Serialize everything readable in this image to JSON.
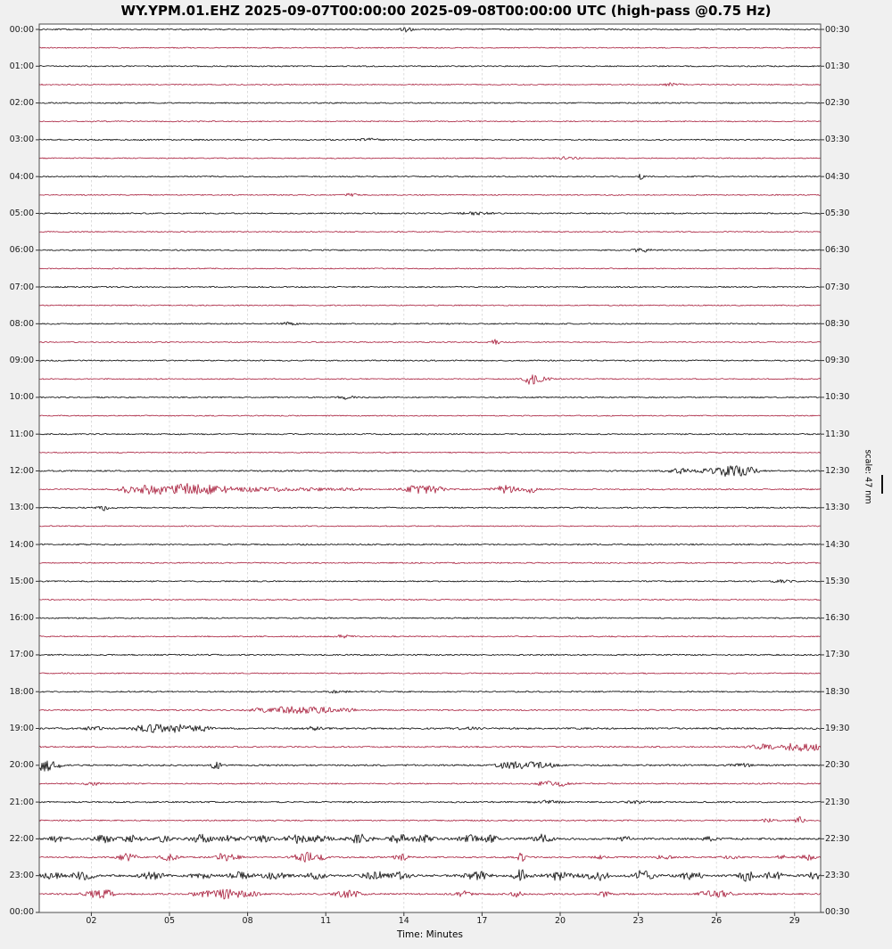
{
  "colors": {
    "trace_black": "#1f1f1f",
    "trace_red": "#a81e3c",
    "grid": "#d4d4d4",
    "frame": "#4d4d4d",
    "tick": "#333333",
    "background": "#f0f0f0",
    "plot_bg": "#ffffff"
  },
  "chart_data": {
    "type": "line",
    "subtype": "helicorder-dayplot",
    "title": "WY.YPM.01.EHZ 2025-09-07T00:00:00 2025-09-08T00:00:00 UTC (high-pass @0.75 Hz)",
    "station": "WY.YPM.01.EHZ",
    "time_start": "2025-09-07T00:00:00 UTC",
    "time_end": "2025-09-08T00:00:00 UTC",
    "filter": "high-pass @0.75 Hz",
    "xlabel": "Time: Minutes",
    "scale_label": "scale: 47 nm",
    "x_range_minutes": [
      0,
      30
    ],
    "minutes_per_line": 30,
    "x_ticks": [
      {
        "label": "02",
        "minute": 2
      },
      {
        "label": "05",
        "minute": 5
      },
      {
        "label": "08",
        "minute": 8
      },
      {
        "label": "11",
        "minute": 11
      },
      {
        "label": "14",
        "minute": 14
      },
      {
        "label": "17",
        "minute": 17
      },
      {
        "label": "20",
        "minute": 20
      },
      {
        "label": "23",
        "minute": 23
      },
      {
        "label": "26",
        "minute": 26
      },
      {
        "label": "29",
        "minute": 29
      }
    ],
    "y_left_labels": [
      "00:00",
      "01:00",
      "02:00",
      "03:00",
      "04:00",
      "05:00",
      "06:00",
      "07:00",
      "08:00",
      "09:00",
      "10:00",
      "11:00",
      "12:00",
      "13:00",
      "14:00",
      "15:00",
      "16:00",
      "17:00",
      "18:00",
      "19:00",
      "20:00",
      "21:00",
      "22:00",
      "23:00",
      "00:00"
    ],
    "y_right_labels": [
      "00:30",
      "01:30",
      "02:30",
      "03:30",
      "04:30",
      "05:30",
      "06:30",
      "07:30",
      "08:30",
      "09:30",
      "10:30",
      "11:30",
      "12:30",
      "13:30",
      "14:30",
      "15:30",
      "16:30",
      "17:30",
      "18:30",
      "19:30",
      "20:30",
      "21:30",
      "22:30",
      "23:30",
      "00:30"
    ],
    "legend": "alternating trace colors per 30-minute line: black (on the hour), red (on the half hour)",
    "rows": [
      {
        "start": "00:00",
        "color": "black",
        "noise": 0.7,
        "events": [
          [
            14.1,
            0.15,
            2.5
          ]
        ]
      },
      {
        "start": "00:30",
        "color": "red",
        "noise": 0.6,
        "events": []
      },
      {
        "start": "01:00",
        "color": "black",
        "noise": 0.7,
        "events": []
      },
      {
        "start": "01:30",
        "color": "red",
        "noise": 0.6,
        "events": [
          [
            24.3,
            0.2,
            2
          ]
        ]
      },
      {
        "start": "02:00",
        "color": "black",
        "noise": 0.7,
        "events": []
      },
      {
        "start": "02:30",
        "color": "red",
        "noise": 0.6,
        "events": []
      },
      {
        "start": "03:00",
        "color": "black",
        "noise": 0.7,
        "events": [
          [
            12.6,
            0.3,
            1.5
          ]
        ]
      },
      {
        "start": "03:30",
        "color": "red",
        "noise": 0.6,
        "events": [
          [
            20.3,
            0.25,
            1.8
          ]
        ]
      },
      {
        "start": "04:00",
        "color": "black",
        "noise": 0.7,
        "events": [
          [
            23.1,
            0.06,
            3.5
          ]
        ]
      },
      {
        "start": "04:30",
        "color": "red",
        "noise": 0.6,
        "events": [
          [
            12.0,
            0.2,
            1.5
          ]
        ]
      },
      {
        "start": "05:00",
        "color": "black",
        "noise": 0.75,
        "events": [
          [
            16.7,
            0.4,
            1.2
          ]
        ]
      },
      {
        "start": "05:30",
        "color": "red",
        "noise": 0.6,
        "events": []
      },
      {
        "start": "06:00",
        "color": "black",
        "noise": 0.7,
        "events": [
          [
            23.1,
            0.25,
            2
          ]
        ]
      },
      {
        "start": "06:30",
        "color": "red",
        "noise": 0.6,
        "events": []
      },
      {
        "start": "07:00",
        "color": "black",
        "noise": 0.7,
        "events": []
      },
      {
        "start": "07:30",
        "color": "red",
        "noise": 0.6,
        "events": []
      },
      {
        "start": "08:00",
        "color": "black",
        "noise": 0.7,
        "events": [
          [
            9.6,
            0.2,
            1.5
          ]
        ]
      },
      {
        "start": "08:30",
        "color": "red",
        "noise": 0.6,
        "events": [
          [
            17.5,
            0.12,
            3
          ]
        ]
      },
      {
        "start": "09:00",
        "color": "black",
        "noise": 0.7,
        "events": []
      },
      {
        "start": "09:30",
        "color": "red",
        "noise": 0.6,
        "events": [
          [
            18.9,
            0.18,
            6
          ],
          [
            19.3,
            0.3,
            2
          ]
        ]
      },
      {
        "start": "10:00",
        "color": "black",
        "noise": 0.7,
        "events": [
          [
            11.8,
            0.2,
            1.8
          ]
        ]
      },
      {
        "start": "10:30",
        "color": "red",
        "noise": 0.6,
        "events": []
      },
      {
        "start": "11:00",
        "color": "black",
        "noise": 0.7,
        "events": []
      },
      {
        "start": "11:30",
        "color": "red",
        "noise": 0.6,
        "events": []
      },
      {
        "start": "12:00",
        "color": "black",
        "noise": 0.8,
        "events": [
          [
            24.6,
            0.3,
            2.5
          ],
          [
            25.5,
            0.2,
            2
          ],
          [
            26.3,
            0.35,
            5
          ],
          [
            27.1,
            0.35,
            4.5
          ]
        ]
      },
      {
        "start": "12:30",
        "color": "red",
        "noise": 0.7,
        "events": [
          [
            3.5,
            0.3,
            4
          ],
          [
            4.4,
            0.35,
            6
          ],
          [
            5.7,
            0.45,
            7
          ],
          [
            6.6,
            0.25,
            4
          ],
          [
            7.2,
            0.12,
            5
          ],
          [
            8.0,
            0.4,
            2.5
          ],
          [
            9.2,
            0.4,
            2
          ],
          [
            10.5,
            0.5,
            1.5
          ],
          [
            12.0,
            0.4,
            1.2
          ],
          [
            14.5,
            0.35,
            4
          ],
          [
            15.2,
            0.3,
            3
          ],
          [
            17.9,
            0.35,
            4
          ],
          [
            18.9,
            0.15,
            4
          ]
        ]
      },
      {
        "start": "13:00",
        "color": "black",
        "noise": 0.7,
        "events": [
          [
            2.45,
            0.15,
            3
          ]
        ]
      },
      {
        "start": "13:30",
        "color": "red",
        "noise": 0.6,
        "events": []
      },
      {
        "start": "14:00",
        "color": "black",
        "noise": 0.75,
        "events": []
      },
      {
        "start": "14:30",
        "color": "red",
        "noise": 0.7,
        "events": []
      },
      {
        "start": "15:00",
        "color": "black",
        "noise": 0.7,
        "events": [
          [
            28.6,
            0.3,
            1.3
          ]
        ]
      },
      {
        "start": "15:30",
        "color": "red",
        "noise": 0.65,
        "events": []
      },
      {
        "start": "16:00",
        "color": "black",
        "noise": 0.7,
        "events": []
      },
      {
        "start": "16:30",
        "color": "red",
        "noise": 0.65,
        "events": [
          [
            11.7,
            0.2,
            2
          ]
        ]
      },
      {
        "start": "17:00",
        "color": "black",
        "noise": 0.75,
        "events": []
      },
      {
        "start": "17:30",
        "color": "red",
        "noise": 0.65,
        "events": []
      },
      {
        "start": "18:00",
        "color": "black",
        "noise": 0.75,
        "events": [
          [
            11.5,
            0.3,
            1.3
          ]
        ]
      },
      {
        "start": "18:30",
        "color": "red",
        "noise": 0.7,
        "events": [
          [
            8.4,
            0.3,
            2
          ],
          [
            9.4,
            0.4,
            3
          ],
          [
            10.2,
            0.4,
            3
          ],
          [
            11.0,
            0.3,
            2.5
          ],
          [
            11.8,
            0.25,
            2
          ]
        ]
      },
      {
        "start": "19:00",
        "color": "black",
        "noise": 0.9,
        "events": [
          [
            2.1,
            0.2,
            2.5
          ],
          [
            4.0,
            0.3,
            3
          ],
          [
            4.8,
            0.45,
            4
          ],
          [
            5.6,
            0.3,
            3
          ],
          [
            6.3,
            0.2,
            2.5
          ],
          [
            10.5,
            0.3,
            1.5
          ],
          [
            16.5,
            0.3,
            1.3
          ]
        ]
      },
      {
        "start": "19:30",
        "color": "red",
        "noise": 0.8,
        "events": [
          [
            27.8,
            0.4,
            2.5
          ],
          [
            28.8,
            0.3,
            3
          ],
          [
            29.4,
            0.3,
            3.5
          ],
          [
            29.8,
            0.2,
            3
          ]
        ]
      },
      {
        "start": "20:00",
        "color": "black",
        "noise": 0.9,
        "events": [
          [
            0.15,
            0.25,
            5
          ],
          [
            0.55,
            0.2,
            3.5
          ],
          [
            6.8,
            0.15,
            4
          ],
          [
            17.9,
            0.25,
            2.5
          ],
          [
            18.6,
            0.4,
            3.5
          ],
          [
            19.4,
            0.3,
            2.5
          ],
          [
            27.0,
            0.3,
            1.5
          ]
        ]
      },
      {
        "start": "20:30",
        "color": "red",
        "noise": 0.7,
        "events": [
          [
            2.0,
            0.2,
            2
          ],
          [
            19.5,
            0.3,
            2.5
          ],
          [
            20.1,
            0.25,
            2
          ]
        ]
      },
      {
        "start": "21:00",
        "color": "black",
        "noise": 0.8,
        "events": [
          [
            19.5,
            0.4,
            1.3
          ],
          [
            23.0,
            0.3,
            1.2
          ]
        ]
      },
      {
        "start": "21:30",
        "color": "red",
        "noise": 0.7,
        "events": [
          [
            28.0,
            0.15,
            2
          ],
          [
            29.2,
            0.12,
            4
          ]
        ]
      },
      {
        "start": "22:00",
        "color": "black",
        "noise": 1.1,
        "events": [
          [
            0.7,
            0.2,
            3
          ],
          [
            2.5,
            0.25,
            4
          ],
          [
            3.6,
            0.3,
            3.5
          ],
          [
            4.8,
            0.2,
            3
          ],
          [
            6.2,
            0.3,
            4.5
          ],
          [
            7.3,
            0.25,
            3.5
          ],
          [
            8.4,
            0.3,
            4.5
          ],
          [
            9.9,
            0.3,
            4.5
          ],
          [
            10.8,
            0.25,
            3.5
          ],
          [
            12.3,
            0.3,
            4.5
          ],
          [
            13.9,
            0.3,
            5
          ],
          [
            14.8,
            0.25,
            4
          ],
          [
            16.5,
            0.25,
            4.5
          ],
          [
            17.3,
            0.2,
            3.5
          ],
          [
            19.3,
            0.25,
            4.5
          ],
          [
            22.5,
            0.15,
            2.5
          ],
          [
            25.7,
            0.2,
            2
          ]
        ]
      },
      {
        "start": "22:30",
        "color": "red",
        "noise": 0.8,
        "events": [
          [
            3.4,
            0.25,
            4
          ],
          [
            5.0,
            0.25,
            3.5
          ],
          [
            7.2,
            0.3,
            5
          ],
          [
            10.2,
            0.3,
            5
          ],
          [
            10.8,
            0.2,
            3.5
          ],
          [
            13.9,
            0.2,
            3.5
          ],
          [
            18.5,
            0.12,
            5
          ],
          [
            21.5,
            0.2,
            2
          ],
          [
            24.0,
            0.2,
            2.5
          ],
          [
            26.5,
            0.2,
            2
          ],
          [
            28.5,
            0.15,
            2
          ],
          [
            29.5,
            0.2,
            3
          ]
        ]
      },
      {
        "start": "23:00",
        "color": "black",
        "noise": 1.2,
        "events": [
          [
            0.5,
            0.25,
            3.5
          ],
          [
            1.7,
            0.3,
            4
          ],
          [
            4.3,
            0.3,
            4
          ],
          [
            6.2,
            0.25,
            3.5
          ],
          [
            7.7,
            0.3,
            4
          ],
          [
            9.1,
            0.3,
            4
          ],
          [
            10.6,
            0.25,
            3.5
          ],
          [
            12.9,
            0.3,
            4
          ],
          [
            13.9,
            0.25,
            3.5
          ],
          [
            16.8,
            0.3,
            4.5
          ],
          [
            18.5,
            0.2,
            6
          ],
          [
            20.0,
            0.35,
            5
          ],
          [
            21.4,
            0.3,
            5
          ],
          [
            23.2,
            0.25,
            6
          ],
          [
            25.0,
            0.3,
            4
          ],
          [
            27.2,
            0.2,
            6
          ],
          [
            28.2,
            0.25,
            4
          ],
          [
            29.8,
            0.2,
            4
          ]
        ]
      },
      {
        "start": "23:30",
        "color": "red",
        "noise": 0.9,
        "events": [
          [
            2.1,
            0.3,
            3
          ],
          [
            2.6,
            0.2,
            3.5
          ],
          [
            6.3,
            0.3,
            3
          ],
          [
            7.2,
            0.35,
            5
          ],
          [
            8.0,
            0.3,
            3
          ],
          [
            11.8,
            0.35,
            4.5
          ],
          [
            16.3,
            0.2,
            3
          ],
          [
            18.3,
            0.15,
            3.5
          ],
          [
            21.7,
            0.15,
            3
          ],
          [
            25.7,
            0.25,
            4
          ],
          [
            26.3,
            0.2,
            3
          ]
        ]
      }
    ]
  }
}
